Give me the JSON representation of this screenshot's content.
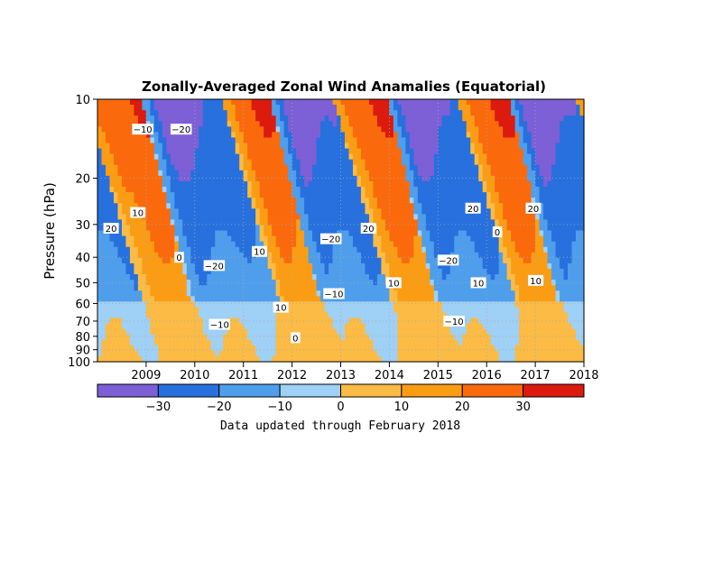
{
  "chart_data": {
    "type": "heatmap",
    "title": "Zonally-Averaged Zonal Wind Anamalies (Equatorial)",
    "ylabel": "Pressure (hPa)",
    "xlabel": "",
    "y_scale": "log",
    "y_axis_inverted": true,
    "ylim": [
      100,
      10
    ],
    "xlim": [
      2008.0,
      2018.0
    ],
    "y_ticks": [
      10,
      20,
      30,
      40,
      50,
      60,
      70,
      80,
      90,
      100
    ],
    "x_ticks": [
      2009,
      2010,
      2011,
      2012,
      2013,
      2014,
      2015,
      2016,
      2017,
      2018
    ],
    "grid": true,
    "colorbar": {
      "levels": [
        -40,
        -30,
        -20,
        -10,
        0,
        10,
        20,
        30,
        40
      ],
      "tick_labels": [
        "-30",
        "-20",
        "-10",
        "0",
        "10",
        "20",
        "30"
      ],
      "colors": [
        "#7d5fd6",
        "#2770de",
        "#4f9eec",
        "#9fd0f6",
        "#fbbb44",
        "#fb9d14",
        "#fa6a0c",
        "#dc1a0e"
      ]
    },
    "contour_labels": [
      {
        "text": "20",
        "x": 2008.28,
        "p": 31
      },
      {
        "text": "10",
        "x": 2008.83,
        "p": 27
      },
      {
        "text": "−10",
        "x": 2008.93,
        "p": 13
      },
      {
        "text": "−20",
        "x": 2009.72,
        "p": 13
      },
      {
        "text": "0",
        "x": 2009.68,
        "p": 40
      },
      {
        "text": "−20",
        "x": 2010.4,
        "p": 43
      },
      {
        "text": "−10",
        "x": 2010.51,
        "p": 72
      },
      {
        "text": "10",
        "x": 2011.33,
        "p": 38
      },
      {
        "text": "10",
        "x": 2011.77,
        "p": 62
      },
      {
        "text": "0",
        "x": 2012.07,
        "p": 81
      },
      {
        "text": "−20",
        "x": 2012.8,
        "p": 34
      },
      {
        "text": "−10",
        "x": 2012.86,
        "p": 55
      },
      {
        "text": "20",
        "x": 2013.57,
        "p": 31
      },
      {
        "text": "10",
        "x": 2014.09,
        "p": 50
      },
      {
        "text": "−20",
        "x": 2015.21,
        "p": 41
      },
      {
        "text": "−10",
        "x": 2015.33,
        "p": 70
      },
      {
        "text": "20",
        "x": 2015.72,
        "p": 26
      },
      {
        "text": "10",
        "x": 2015.83,
        "p": 50
      },
      {
        "text": "0",
        "x": 2016.22,
        "p": 32
      },
      {
        "text": "20",
        "x": 2016.96,
        "p": 26
      },
      {
        "text": "10",
        "x": 2017.01,
        "p": 49
      }
    ],
    "cells": {
      "comment_free": true,
      "note": ""
    }
  },
  "footnote": "Data updated through February 2018"
}
